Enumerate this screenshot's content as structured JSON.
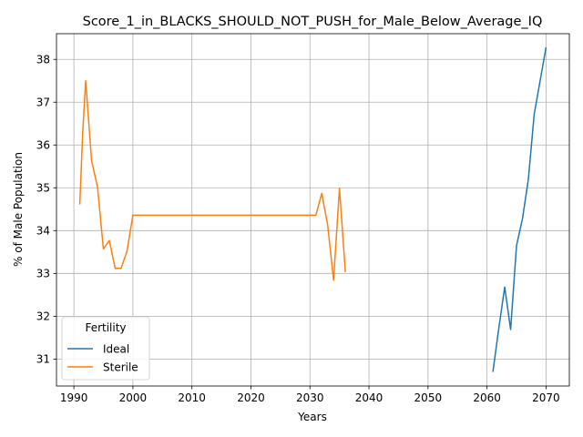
{
  "chart_data": {
    "type": "line",
    "title": "Score_1_in_BLACKS_SHOULD_NOT_PUSH_for_Male_Below_Average_IQ",
    "xlabel": "Years",
    "ylabel": "% of Male Population",
    "xlim": [
      1987.05,
      2073.95
    ],
    "ylim": [
      30.37,
      38.6
    ],
    "xticks": [
      1990,
      2000,
      2010,
      2020,
      2030,
      2040,
      2050,
      2060,
      2070
    ],
    "yticks": [
      31,
      32,
      33,
      34,
      35,
      36,
      37,
      38
    ],
    "grid": true,
    "legend": {
      "title": "Fertility",
      "placement": "lower-left"
    },
    "series": [
      {
        "name": "Ideal",
        "color": "#1f77b4",
        "x": [
          2061,
          2062,
          2063,
          2064,
          2065,
          2066,
          2067,
          2068,
          2069,
          2070
        ],
        "y": [
          30.7,
          31.72,
          32.68,
          31.69,
          33.65,
          34.27,
          35.19,
          36.72,
          37.5,
          38.28
        ]
      },
      {
        "name": "Sterile",
        "color": "#ff7f0e",
        "x": [
          1991,
          1991.5,
          1992,
          1993,
          1994,
          1995,
          1996,
          1997,
          1998,
          1999,
          2000,
          2031,
          2032,
          2033,
          2034,
          2035,
          2036
        ],
        "y": [
          34.61,
          36.3,
          37.5,
          35.63,
          35.02,
          33.57,
          33.77,
          33.12,
          33.12,
          33.52,
          34.36,
          34.36,
          34.87,
          34.13,
          32.84,
          34.99,
          33.03
        ]
      }
    ]
  }
}
